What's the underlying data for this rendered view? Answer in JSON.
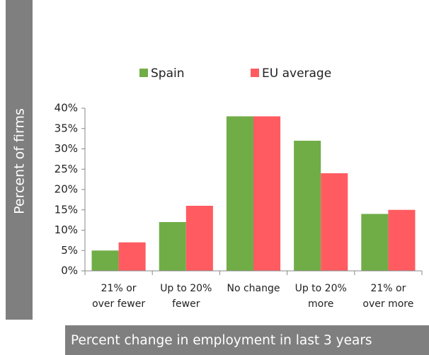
{
  "chart_data": {
    "type": "bar",
    "y_label": "Percent of firms",
    "x_label": "Percent change in employment in last 3 years",
    "categories": [
      "21% or over fewer",
      "Up to 20% fewer",
      "No change",
      "Up to 20% more",
      "21% or over more"
    ],
    "series": [
      {
        "name": "Spain",
        "color": "#70ad47",
        "values": [
          5,
          12,
          38,
          32,
          14
        ]
      },
      {
        "name": "EU average",
        "color": "#ff5b61",
        "values": [
          7,
          16,
          38,
          24,
          15
        ]
      }
    ],
    "ylim": [
      0,
      40
    ],
    "yticks": [
      {
        "value": 0,
        "label": "0%"
      },
      {
        "value": 5,
        "label": "5%"
      },
      {
        "value": 10,
        "label": "10%"
      },
      {
        "value": 15,
        "label": "15%"
      },
      {
        "value": 20,
        "label": "20%"
      },
      {
        "value": 25,
        "label": "25%"
      },
      {
        "value": 30,
        "label": "30%"
      },
      {
        "value": 35,
        "label": "35%"
      },
      {
        "value": 40,
        "label": "40%"
      }
    ],
    "legend": "top",
    "grid": false
  }
}
